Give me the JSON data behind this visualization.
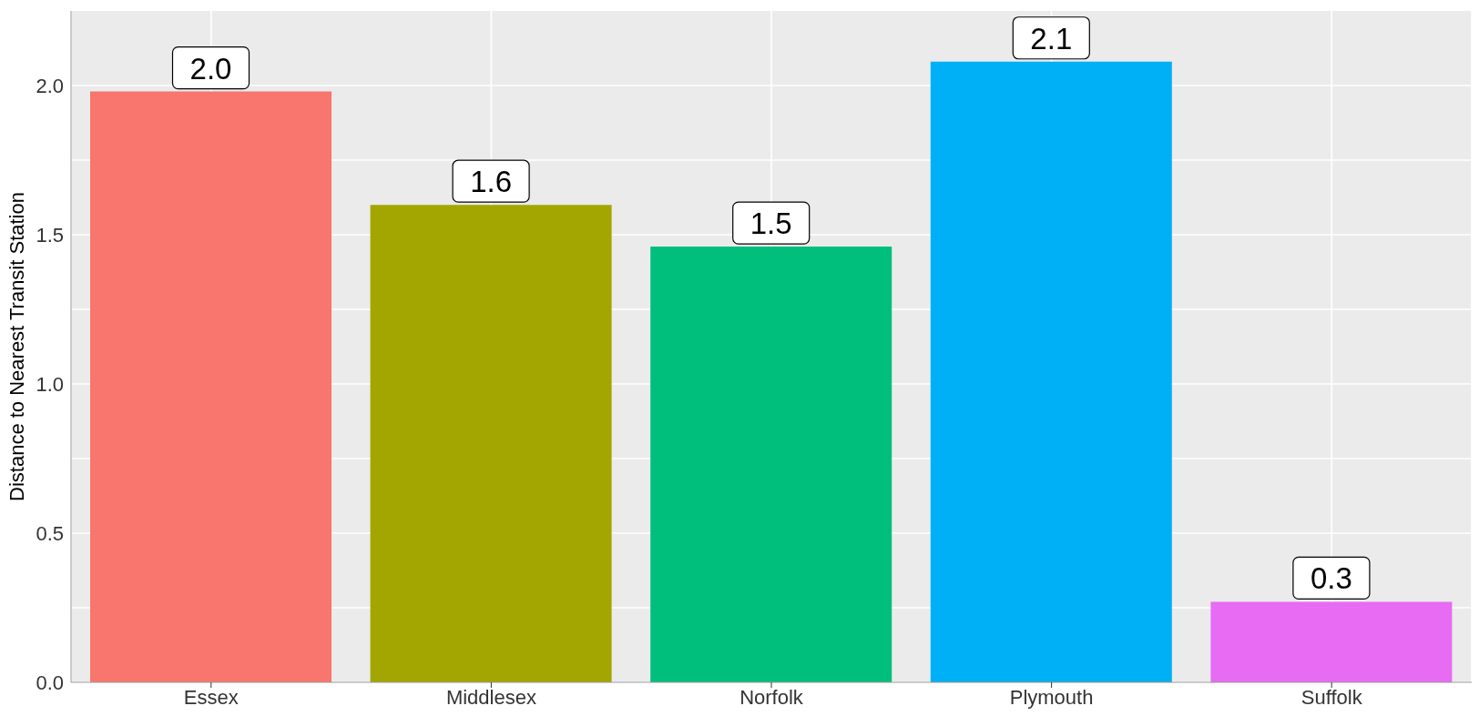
{
  "chart_data": {
    "type": "bar",
    "ylabel": "Distance to Nearest Transit Station",
    "categories": [
      "Essex",
      "Middlesex",
      "Norfolk",
      "Plymouth",
      "Suffolk"
    ],
    "values": [
      1.98,
      1.6,
      1.46,
      2.08,
      0.27
    ],
    "colors": [
      "#f8766d",
      "#a3a500",
      "#00bf7d",
      "#00b0f6",
      "#e76bf3"
    ],
    "value_labels": [
      "2.0",
      "1.6",
      "1.5",
      "2.1",
      "0.3"
    ],
    "ylim": [
      0,
      2.25
    ],
    "yticks": [
      "0.0",
      {
        "value": 0.25,
        "label": null
      },
      {
        "value": 0.5,
        "label": "0.5"
      },
      {
        "value": 0.75,
        "label": null
      },
      {
        "value": 1,
        "label": "1.0"
      },
      {
        "value": 1.25,
        "label": null
      },
      {
        "value": 1.5,
        "label": "1.5"
      },
      {
        "value": 1.75,
        "label": null
      },
      {
        "value": 2,
        "label": "2.0"
      }
    ],
    "grid": true
  }
}
